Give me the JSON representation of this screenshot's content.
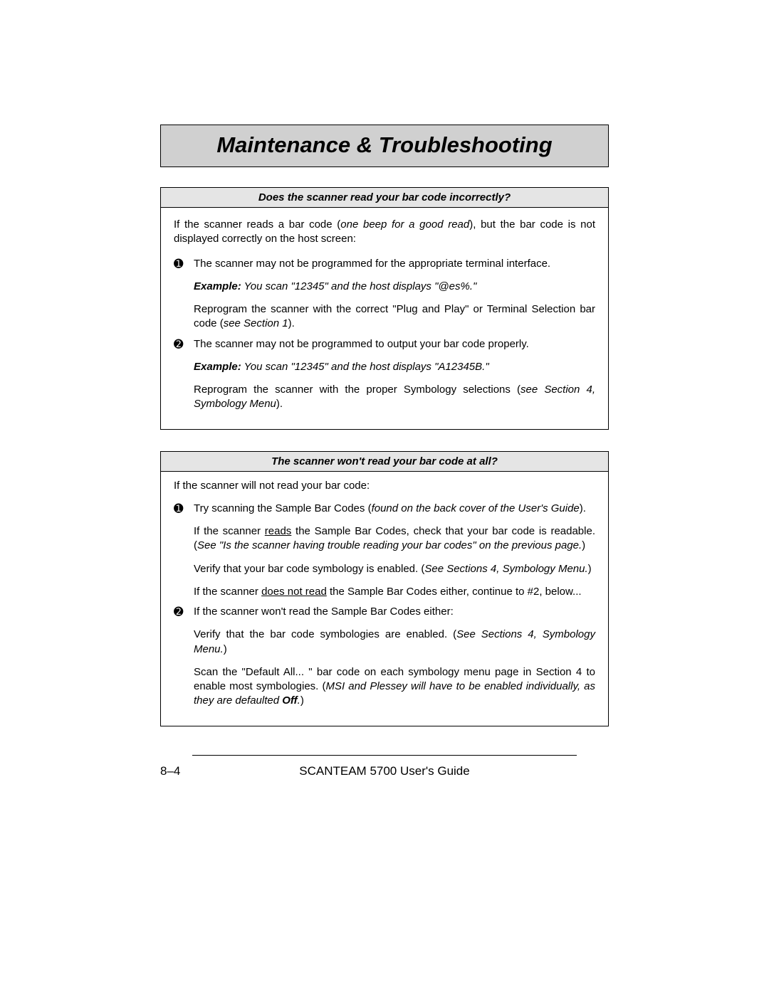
{
  "title": "Maintenance & Troubleshooting",
  "section1": {
    "header": "Does the scanner read your bar code incorrectly?",
    "intro_a": "If the scanner reads a bar code (",
    "intro_b": "one beep for a good read",
    "intro_c": "), but the bar code is not displayed correctly on the host screen:",
    "item1": {
      "num": "➊",
      "p1": "The scanner may not be programmed for the appropriate terminal interface.",
      "ex_label": "Example:",
      "ex_text": " You scan \"12345\" and the host displays \"@es%.\"",
      "p3a": "Reprogram the scanner with the correct \"Plug  and Play\" or Terminal Selection bar code (",
      "p3b": "see Section 1",
      "p3c": ")."
    },
    "item2": {
      "num": "➋",
      "p1": "The scanner may not be programmed to output your bar code properly.",
      "ex_label": "Example:",
      "ex_text": " You scan \"12345\" and the host displays \"A12345B.\"",
      "p3a": "Reprogram the scanner with the proper Symbology selections (",
      "p3b": "see Section 4, Symbology Menu",
      "p3c": ")."
    }
  },
  "section2": {
    "header": "The scanner won't read your bar code at all?",
    "intro": "If the scanner will not read your bar code:",
    "item1": {
      "num": "➊",
      "p1a": "Try scanning the Sample Bar Codes (",
      "p1b": "found on the back cover of the User's Guide",
      "p1c": ").",
      "p2a": "If the scanner ",
      "p2b": "reads",
      "p2c": " the Sample Bar Codes, check that your bar code is readable.  (",
      "p2d": "See \"Is the scanner having trouble reading your bar codes\" on the previous page.",
      "p2e": ")",
      "p3a": "Verify that your bar code symbology is enabled.  (",
      "p3b": "See Sections 4, Symbology Menu.",
      "p3c": ")",
      "p4a": "If the scanner ",
      "p4b": "does not read",
      "p4c": " the Sample Bar Codes either, continue to #2, below..."
    },
    "item2": {
      "num": "➋",
      "p1": "If the scanner won't read the Sample Bar Codes either:",
      "p2a": "Verify that the bar code symbologies are enabled.  (",
      "p2b": "See Sections 4, Symbology Menu.",
      "p2c": ")",
      "p3a": "Scan the \"Default All... \" bar code on each symbology menu page in Section 4 to enable most symbologies.  (",
      "p3b": "MSI and Plessey will have to be enabled individually, as they are defaulted ",
      "p3c": "Off",
      "p3d": ".",
      "p3e": ")"
    }
  },
  "footer": {
    "page": "8–4",
    "guide": "SCANTEAM 5700 User's Guide"
  }
}
